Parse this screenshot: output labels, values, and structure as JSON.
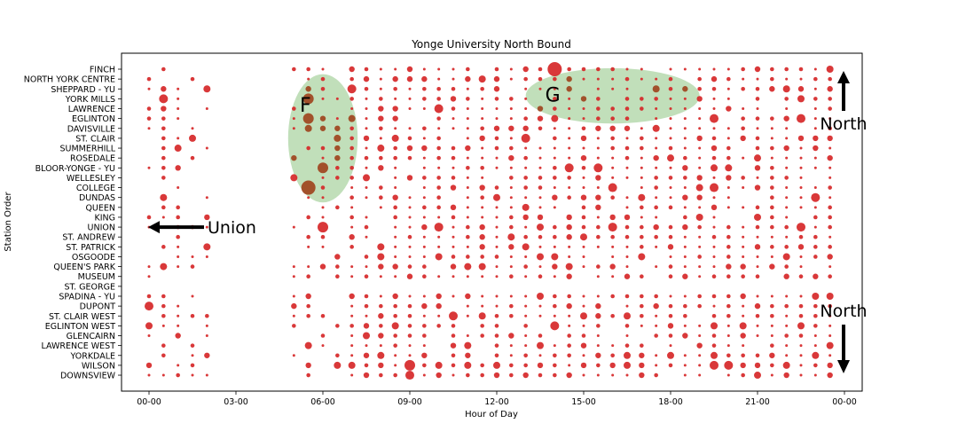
{
  "chart_data": {
    "type": "scatter",
    "title": "Yonge University North Bound",
    "xlabel": "Hour of Day",
    "ylabel": "Station Order",
    "xlim": [
      -1,
      24.5
    ],
    "x_ticks": [
      0,
      3,
      6,
      9,
      12,
      15,
      18,
      21,
      24
    ],
    "x_tick_labels": [
      "00-00",
      "03-00",
      "06-00",
      "09-00",
      "12-00",
      "15-00",
      "18-00",
      "21-00",
      "00-00"
    ],
    "stations": [
      "FINCH",
      "NORTH YORK CENTRE",
      "SHEPPARD - YU",
      "YORK MILLS",
      "LAWRENCE",
      "EGLINTON",
      "DAVISVILLE",
      "ST. CLAIR",
      "SUMMERHILL",
      "ROSEDALE",
      "BLOOR-YONGE - YU",
      "WELLESLEY",
      "COLLEGE",
      "DUNDAS",
      "QUEEN",
      "KING",
      "UNION",
      "ST. ANDREW",
      "ST. PATRICK",
      "OSGOODE",
      "QUEEN'S PARK",
      "MUSEUM",
      "ST. GEORGE",
      "SPADINA - YU",
      "DUPONT",
      "ST. CLAIR WEST",
      "EGLINTON WEST",
      "GLENCAIRN",
      "LAWRENCE WEST",
      "YORKDALE",
      "WILSON",
      "DOWNSVIEW"
    ],
    "marker_color": "#d62728",
    "highlight_color": "#a0441e",
    "region_color": "#a9d3a0",
    "regions": [
      {
        "label": "F",
        "x_center": 6.0,
        "station_center": 7.0,
        "x_radius": 1.2,
        "station_radius": 6.5
      },
      {
        "label": "G",
        "x_center": 16.0,
        "station_center": 2.7,
        "x_radius": 3.0,
        "station_radius": 2.8
      }
    ],
    "annotations": [
      {
        "text": "Union",
        "direction": "left",
        "x": 1.8,
        "station": 16
      },
      {
        "text": "North",
        "direction": "up",
        "x": 24.0,
        "station": 0.9
      },
      {
        "text": "North",
        "direction": "down",
        "x": 24.0,
        "station": 28.7
      }
    ],
    "featured_points": [
      {
        "x": 14.0,
        "station": 0,
        "size": 8
      },
      {
        "x": 5.5,
        "station": 3,
        "size": 6
      },
      {
        "x": 0.5,
        "station": 3,
        "size": 5
      },
      {
        "x": 7.0,
        "station": 2,
        "size": 5
      },
      {
        "x": 10.0,
        "station": 4,
        "size": 5
      },
      {
        "x": 5.5,
        "station": 5,
        "size": 6
      },
      {
        "x": 19.5,
        "station": 5,
        "size": 5
      },
      {
        "x": 22.5,
        "station": 5,
        "size": 5
      },
      {
        "x": 13.0,
        "station": 7,
        "size": 5
      },
      {
        "x": 6.0,
        "station": 10,
        "size": 6
      },
      {
        "x": 14.5,
        "station": 10,
        "size": 5
      },
      {
        "x": 15.5,
        "station": 10,
        "size": 5
      },
      {
        "x": 5.5,
        "station": 12,
        "size": 8
      },
      {
        "x": 16.0,
        "station": 12,
        "size": 5
      },
      {
        "x": 19.5,
        "station": 12,
        "size": 5
      },
      {
        "x": 23.0,
        "station": 13,
        "size": 5
      },
      {
        "x": 6.0,
        "station": 16,
        "size": 6
      },
      {
        "x": 10.0,
        "station": 16,
        "size": 5
      },
      {
        "x": 16.0,
        "station": 16,
        "size": 5
      },
      {
        "x": 22.5,
        "station": 16,
        "size": 5
      },
      {
        "x": 0.0,
        "station": 24,
        "size": 5
      },
      {
        "x": 10.5,
        "station": 25,
        "size": 5
      },
      {
        "x": 9.0,
        "station": 30,
        "size": 6
      },
      {
        "x": 9.0,
        "station": 31,
        "size": 5
      },
      {
        "x": 14.0,
        "station": 26,
        "size": 5
      },
      {
        "x": 20.0,
        "station": 30,
        "size": 5
      },
      {
        "x": 19.5,
        "station": 30,
        "size": 5
      }
    ]
  }
}
